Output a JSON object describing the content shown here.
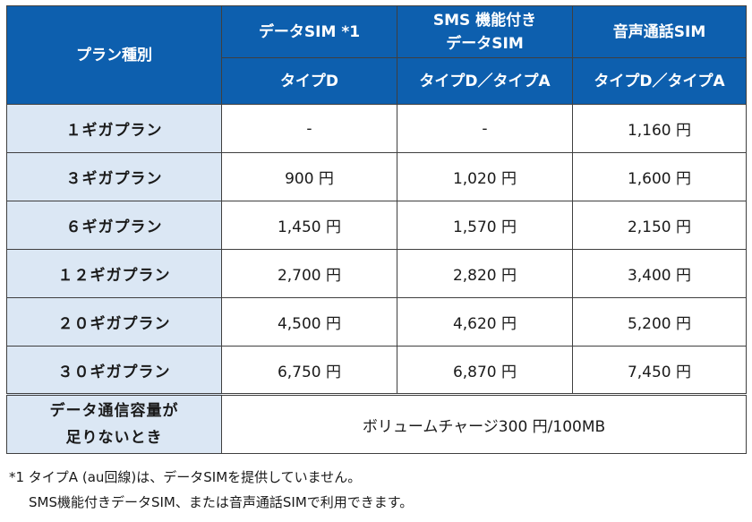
{
  "header": {
    "plan_type": "プラン種別",
    "data_sim": "データSIM *1",
    "sms_line1": "SMS 機能付き",
    "sms_line2": "データSIM",
    "voice_sim": "音声通話SIM",
    "type_d": "タイプD",
    "type_da_sms": "タイプD／タイプA",
    "type_da_voice": "タイプD／タイプA"
  },
  "rows": [
    {
      "plan": "１ギガプラン",
      "data": "-",
      "sms": "-",
      "voice": "1,160 円"
    },
    {
      "plan": "３ギガプラン",
      "data": "900 円",
      "sms": "1,020 円",
      "voice": "1,600 円"
    },
    {
      "plan": "６ギガプラン",
      "data": "1,450 円",
      "sms": "1,570 円",
      "voice": "2,150 円"
    },
    {
      "plan": "１２ギガプラン",
      "data": "2,700 円",
      "sms": "2,820 円",
      "voice": "3,400 円"
    },
    {
      "plan": "２０ギガプラン",
      "data": "4,500 円",
      "sms": "4,620 円",
      "voice": "5,200 円"
    },
    {
      "plan": "３０ギガプラン",
      "data": "6,750 円",
      "sms": "6,870 円",
      "voice": "7,450 円"
    }
  ],
  "shortage": {
    "label_line1": "データ通信容量が",
    "label_line2": "足りないとき",
    "value": "ボリュームチャージ300 円/100MB"
  },
  "footnote": {
    "line1": "*1 タイプA (au回線)は、データSIMを提供していません。",
    "line2": "SMS機能付きデータSIM、または音声通話SIMで利用できます。"
  }
}
